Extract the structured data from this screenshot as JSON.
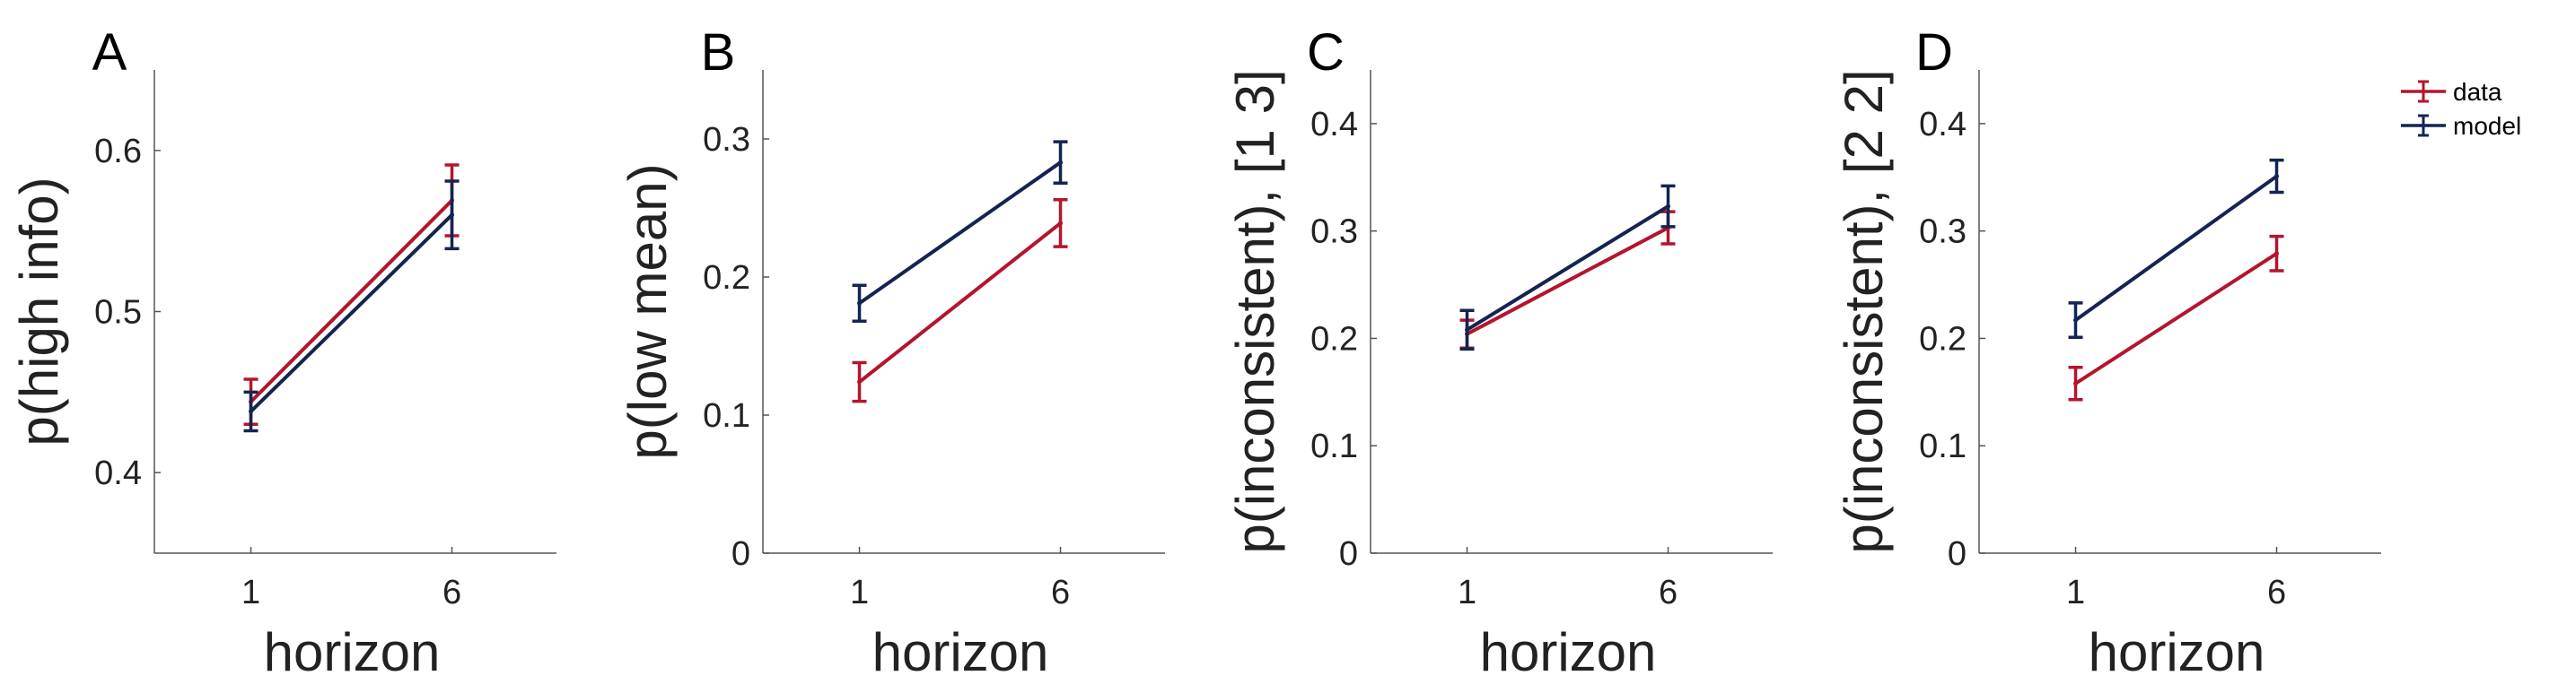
{
  "colors": {
    "data": "#b3152c",
    "model": "#132450"
  },
  "legend": {
    "position": "top-right",
    "entries": [
      "data",
      "model"
    ]
  },
  "chart_data": [
    {
      "type": "line",
      "panel": "A",
      "xlabel": "horizon",
      "ylabel": "p(high info)",
      "categories": [
        "1",
        "6"
      ],
      "ylim": [
        0.35,
        0.65
      ],
      "yticks": [
        "0.4",
        "0.5",
        "0.6"
      ],
      "series": [
        {
          "name": "data",
          "values": [
            0.444,
            0.569
          ],
          "errors": [
            0.014,
            0.022
          ]
        },
        {
          "name": "model",
          "values": [
            0.438,
            0.56
          ],
          "errors": [
            0.012,
            0.021
          ]
        }
      ]
    },
    {
      "type": "line",
      "panel": "B",
      "xlabel": "horizon",
      "ylabel": "p(low mean)",
      "categories": [
        "1",
        "6"
      ],
      "ylim": [
        0,
        0.35
      ],
      "yticks": [
        "0",
        "0.1",
        "0.2",
        "0.3"
      ],
      "series": [
        {
          "name": "data",
          "values": [
            0.124,
            0.239
          ],
          "errors": [
            0.014,
            0.017
          ]
        },
        {
          "name": "model",
          "values": [
            0.181,
            0.283
          ],
          "errors": [
            0.013,
            0.015
          ]
        }
      ]
    },
    {
      "type": "line",
      "panel": "C",
      "xlabel": "horizon",
      "ylabel": "p(inconsistent),  [1 3]",
      "categories": [
        "1",
        "6"
      ],
      "ylim": [
        0,
        0.45
      ],
      "yticks": [
        "0",
        "0.1",
        "0.2",
        "0.3",
        "0.4"
      ],
      "series": [
        {
          "name": "data",
          "values": [
            0.204,
            0.303
          ],
          "errors": [
            0.013,
            0.015
          ]
        },
        {
          "name": "model",
          "values": [
            0.208,
            0.323
          ],
          "errors": [
            0.018,
            0.019
          ]
        }
      ]
    },
    {
      "type": "line",
      "panel": "D",
      "xlabel": "horizon",
      "ylabel": "p(inconsistent),  [2 2]",
      "categories": [
        "1",
        "6"
      ],
      "ylim": [
        0,
        0.45
      ],
      "yticks": [
        "0",
        "0.1",
        "0.2",
        "0.3",
        "0.4"
      ],
      "series": [
        {
          "name": "data",
          "values": [
            0.158,
            0.279
          ],
          "errors": [
            0.015,
            0.016
          ]
        },
        {
          "name": "model",
          "values": [
            0.217,
            0.351
          ],
          "errors": [
            0.016,
            0.015
          ]
        }
      ]
    }
  ]
}
